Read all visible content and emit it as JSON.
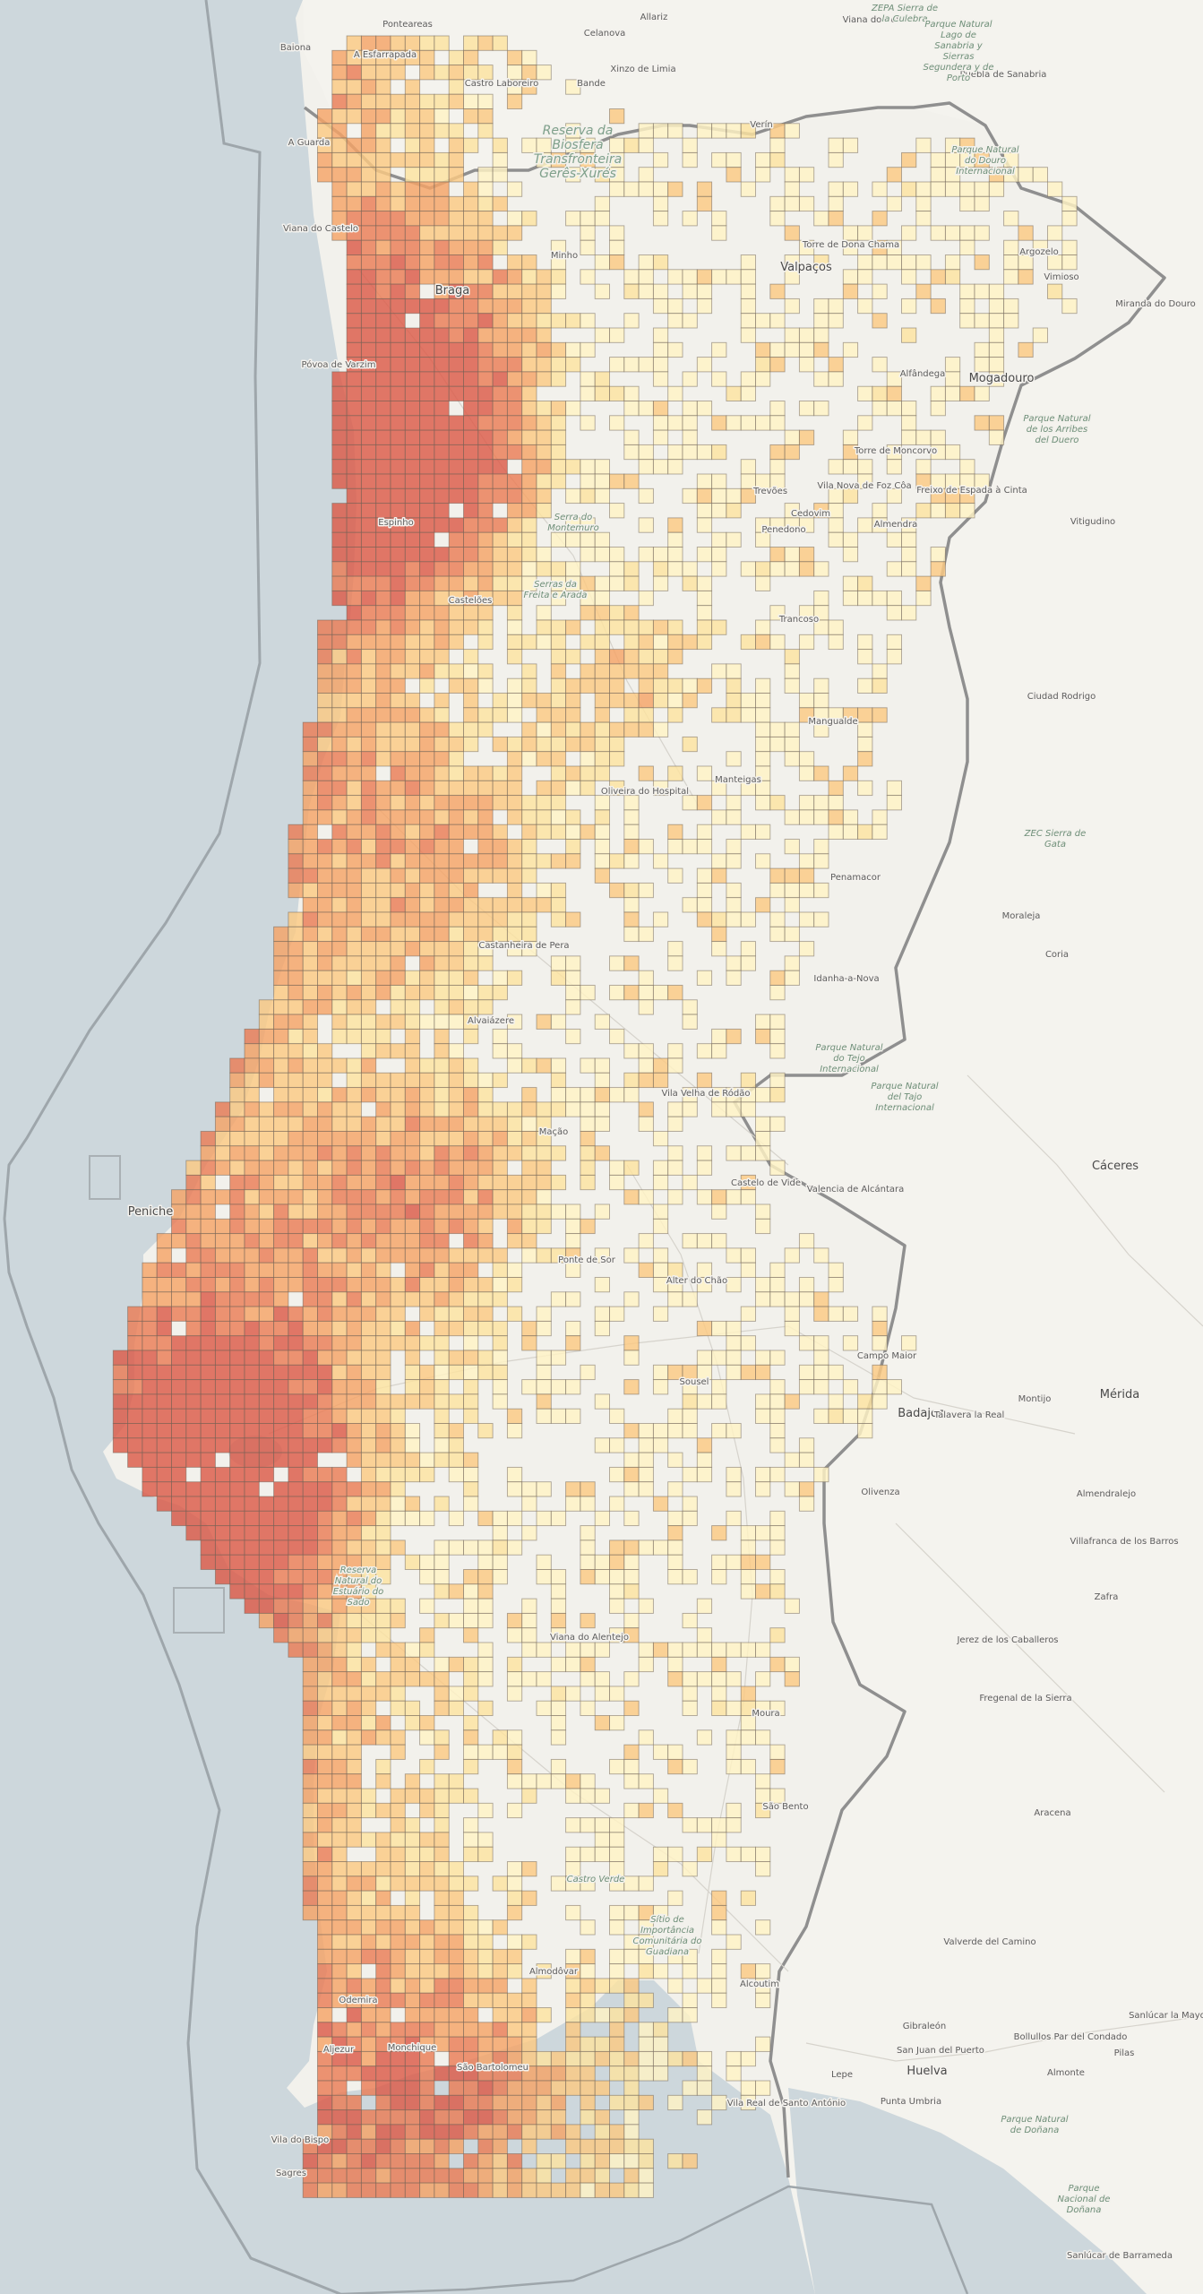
{
  "map": {
    "colors": {
      "sea": "#cdd7dc",
      "land": "#f2f1ec",
      "spain_land": "#f4f3ef",
      "border": "#8f8f8f",
      "maritime_line": "#9ea6ab",
      "cell_stroke": "#6d6257",
      "scale": [
        "#fff3c4",
        "#fde3a0",
        "#fbc982",
        "#f5a466",
        "#ea7c55",
        "#dc5a48"
      ]
    },
    "cells_legend": "density-grid",
    "places": [
      {
        "name": "Baiona"
      },
      {
        "name": "Ponteareas"
      },
      {
        "name": "Celanova"
      },
      {
        "name": "Allariz"
      },
      {
        "name": "Viana do Bolo"
      },
      {
        "name": "A Guarda"
      },
      {
        "name": "A Esfarrapada"
      },
      {
        "name": "Castro Laboreiro"
      },
      {
        "name": "Bande"
      },
      {
        "name": "Xinzo de Limia"
      },
      {
        "name": "Puebla de Sanabria"
      },
      {
        "name": "Verín"
      },
      {
        "name": "Viana do Castelo"
      },
      {
        "name": "Braga"
      },
      {
        "name": "Minho"
      },
      {
        "name": "Póvoa de Varzim"
      },
      {
        "name": "Valpaços"
      },
      {
        "name": "Torre de Dona Chama"
      },
      {
        "name": "Argozelo"
      },
      {
        "name": "Vimioso"
      },
      {
        "name": "Miranda do Douro"
      },
      {
        "name": "Mogadouro"
      },
      {
        "name": "Alfândega"
      },
      {
        "name": "Torre de Moncorvo"
      },
      {
        "name": "Freixo de Espada à Cinta"
      },
      {
        "name": "Vila Nova de Foz Côa"
      },
      {
        "name": "Cedovim"
      },
      {
        "name": "Almendra"
      },
      {
        "name": "Vitigudino"
      },
      {
        "name": "Penedono"
      },
      {
        "name": "Trevões"
      },
      {
        "name": "Espinho"
      },
      {
        "name": "Castelões"
      },
      {
        "name": "Trancoso"
      },
      {
        "name": "Ciudad Rodrigo"
      },
      {
        "name": "Mangualde"
      },
      {
        "name": "Manteigas"
      },
      {
        "name": "Oliveira do Hospital"
      },
      {
        "name": "Castanheira de Pera"
      },
      {
        "name": "Penamacor"
      },
      {
        "name": "Moraleja"
      },
      {
        "name": "Coria"
      },
      {
        "name": "Idanha-a-Nova"
      },
      {
        "name": "Alvaiázere"
      },
      {
        "name": "Vila Velha de Ródão"
      },
      {
        "name": "Castelo de Vide"
      },
      {
        "name": "Valencia de Alcántara"
      },
      {
        "name": "Cáceres"
      },
      {
        "name": "Mação"
      },
      {
        "name": "Ponte de Sor"
      },
      {
        "name": "Alter do Chão"
      },
      {
        "name": "Peniche"
      },
      {
        "name": "Sousel"
      },
      {
        "name": "Campo Maior"
      },
      {
        "name": "Badajoz"
      },
      {
        "name": "Talavera la Real"
      },
      {
        "name": "Montijo"
      },
      {
        "name": "Mérida"
      },
      {
        "name": "Olivenza"
      },
      {
        "name": "Almendralejo"
      },
      {
        "name": "Villafranca de los Barros"
      },
      {
        "name": "Zafra"
      },
      {
        "name": "Jerez de los Caballeros"
      },
      {
        "name": "Fregenal de la Sierra"
      },
      {
        "name": "Viana do Alentejo"
      },
      {
        "name": "Moura"
      },
      {
        "name": "São Bento"
      },
      {
        "name": "Aracena"
      },
      {
        "name": "Valverde del Camino"
      },
      {
        "name": "Alcoutim"
      },
      {
        "name": "Gibraleón"
      },
      {
        "name": "San Juan del Puerto"
      },
      {
        "name": "Bollullos Par del Condado"
      },
      {
        "name": "Almonte"
      },
      {
        "name": "Pilas"
      },
      {
        "name": "Sanlúcar la Mayor"
      },
      {
        "name": "Lepe"
      },
      {
        "name": "Huelva"
      },
      {
        "name": "Punta Umbria"
      },
      {
        "name": "Odemira"
      },
      {
        "name": "Almodôvar"
      },
      {
        "name": "Aljezur"
      },
      {
        "name": "Monchique"
      },
      {
        "name": "São Bartolomeu"
      },
      {
        "name": "Vila do Bispo"
      },
      {
        "name": "Sagres"
      },
      {
        "name": "Vila Real de Santo António"
      },
      {
        "name": "Sanlúcar de Barrameda"
      }
    ],
    "parks": [
      {
        "name": "Reserva da Biosfera Transfronteira Gerês-Xurés"
      },
      {
        "name": "Parque Natural do Douro Internacional"
      },
      {
        "name": "Parque Natural de los Arribes del Duero"
      },
      {
        "name": "ZEPA Sierra de la Culebra"
      },
      {
        "name": "Parque Natural Lago de Sanabria y Sierras Segundera y de Porto"
      },
      {
        "name": "Serra do Montemuro"
      },
      {
        "name": "Serras da Freita e Arada"
      },
      {
        "name": "ZEC Sierra de Gata"
      },
      {
        "name": "Parque Natural do Tejo Internacional"
      },
      {
        "name": "Parque Natural del Tajo Internacional"
      },
      {
        "name": "Reserva Natural do Estuário do Sado"
      },
      {
        "name": "Castro Verde"
      },
      {
        "name": "Sítio de Importância Comunitária do Guadiana"
      },
      {
        "name": "Parque Natural de Doñana"
      },
      {
        "name": "Parque Nacional de Doñana"
      }
    ]
  }
}
